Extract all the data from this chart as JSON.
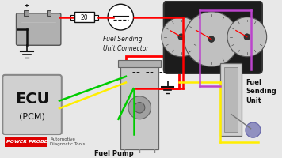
{
  "bg_color": "#e8e8e8",
  "wire_red": "#ff0000",
  "wire_yellow": "#ffee00",
  "wire_green": "#00cc00",
  "wire_purple": "#bb44cc",
  "wire_black": "#111111",
  "wire_gray": "#888888",
  "ecu_label1": "ECU",
  "ecu_label2": "(PCM)",
  "fuse_label": "20",
  "fuel_pump_label": "Fuel Pump",
  "fuel_sending_label": "Fuel\nSending\nUnit",
  "connector_label": "Fuel Sending\nUnit Connector",
  "power_probe_red": "POWER PROBE",
  "auto_diag_text": "Automotive\nDiagnostic Tools"
}
